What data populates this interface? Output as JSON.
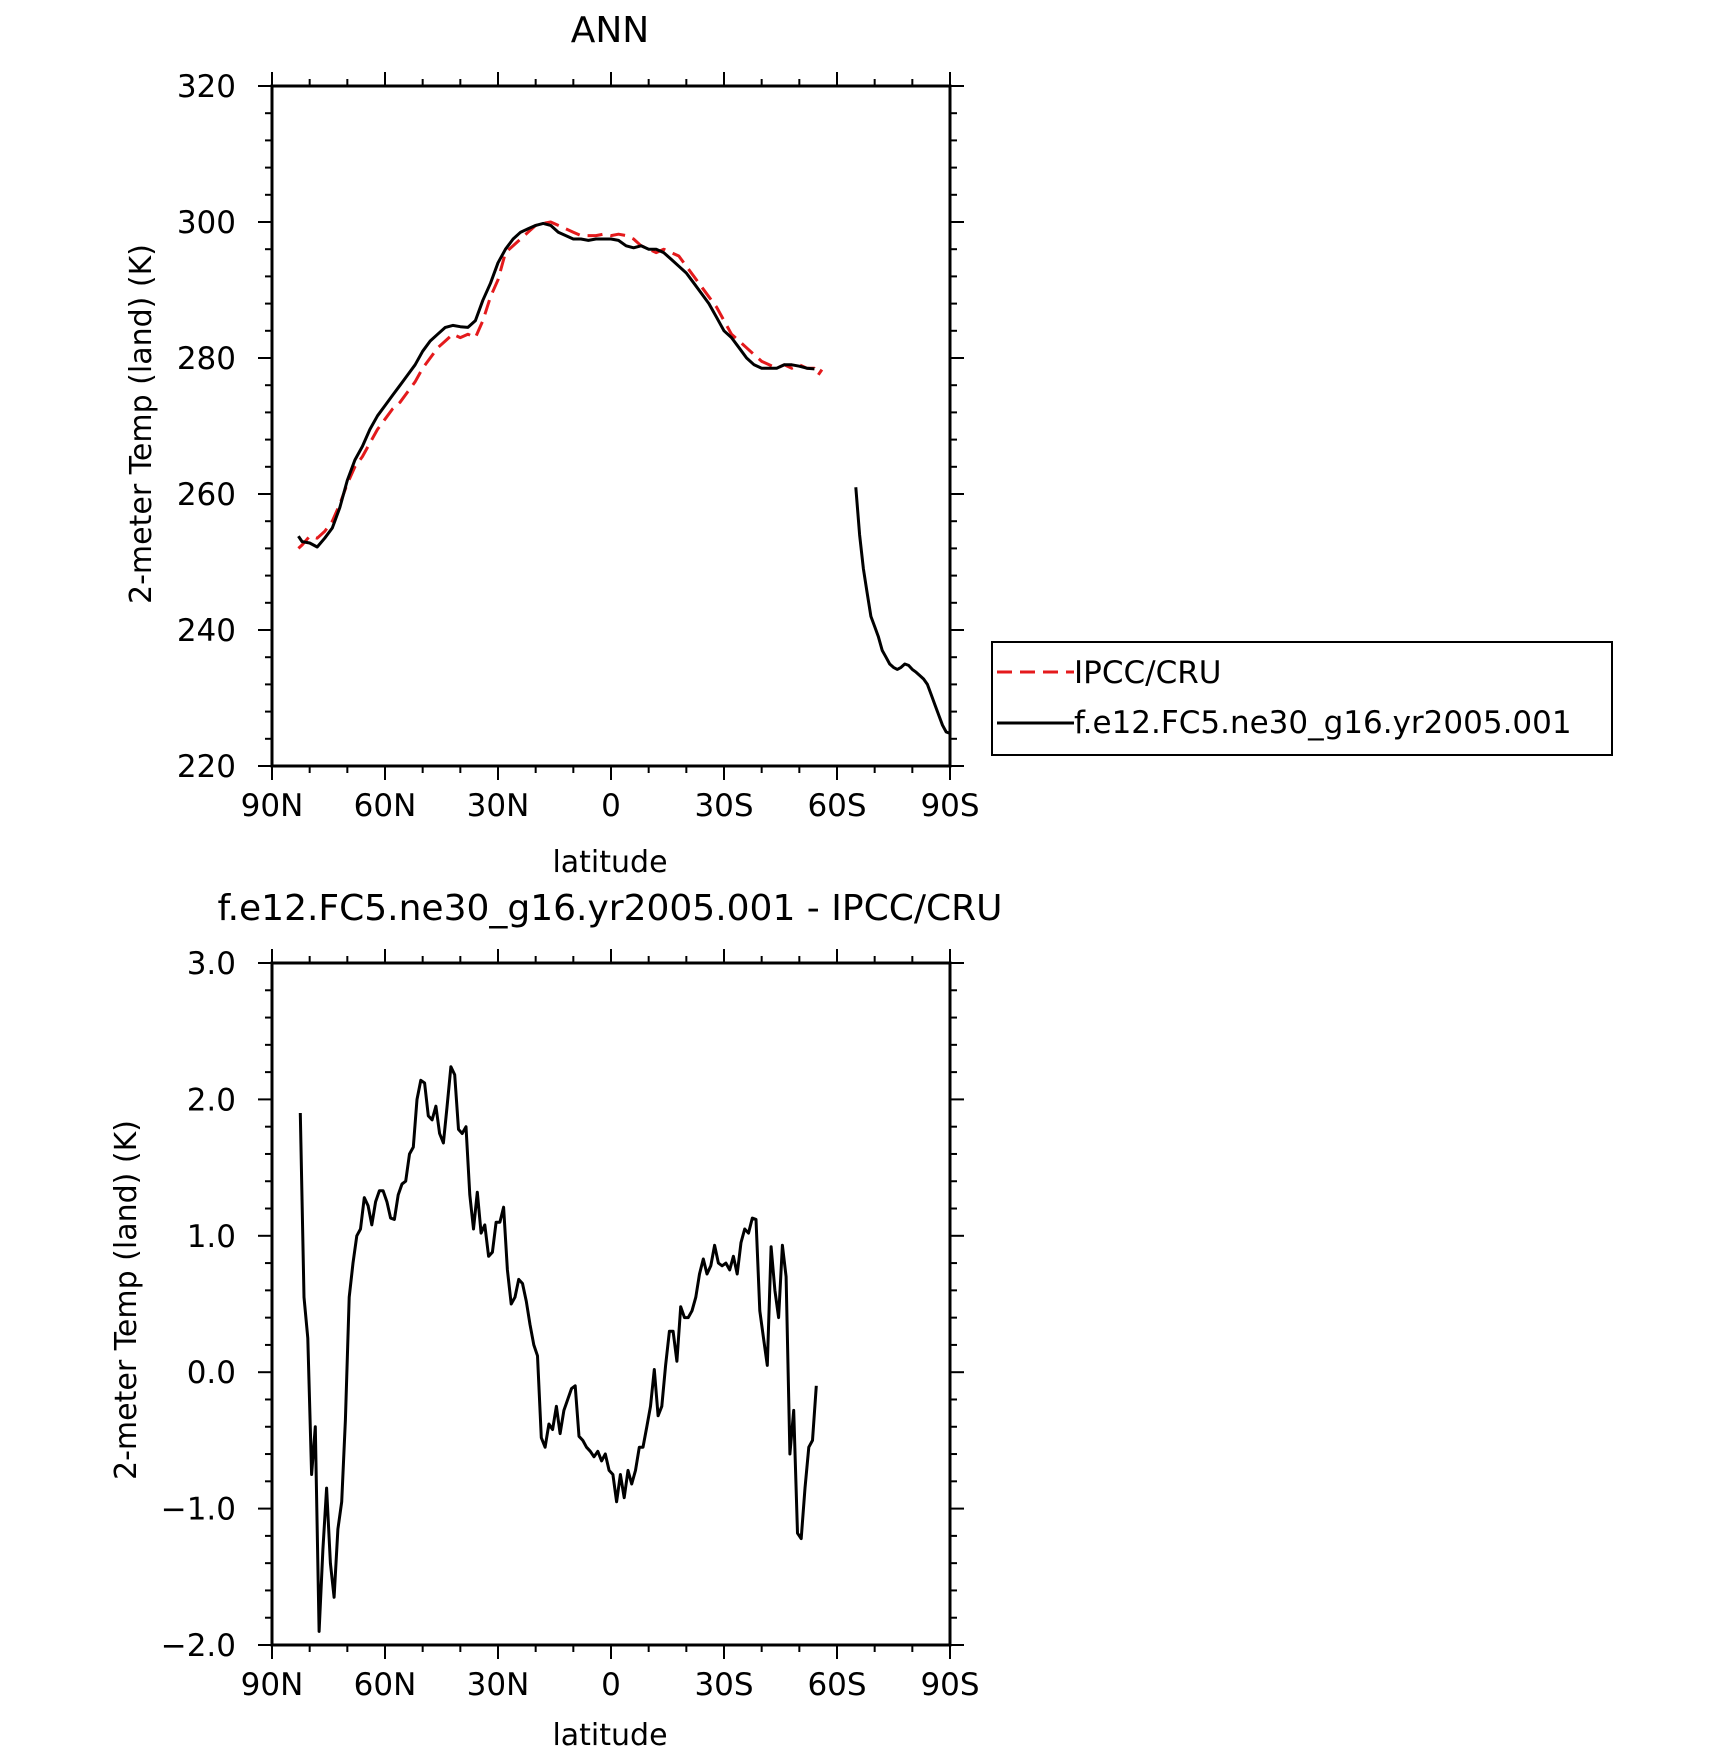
{
  "colors": {
    "obs": "#e41a1c",
    "model": "#000000"
  },
  "chart_data": [
    {
      "type": "line",
      "title": "ANN",
      "xlabel": "latitude",
      "ylabel": "2-meter Temp (land) (K)",
      "xlim": [
        90,
        -90
      ],
      "ylim": [
        220,
        320
      ],
      "grid": false,
      "legend": "right",
      "x_ticks": [
        {
          "value": 90,
          "label": "90N"
        },
        {
          "value": 60,
          "label": "60N"
        },
        {
          "value": 30,
          "label": "30N"
        },
        {
          "value": 0,
          "label": "0"
        },
        {
          "value": -30,
          "label": "30S"
        },
        {
          "value": -60,
          "label": "60S"
        },
        {
          "value": -90,
          "label": "90S"
        }
      ],
      "y_ticks": [
        {
          "value": 320,
          "label": "320"
        },
        {
          "value": 300,
          "label": "300"
        },
        {
          "value": 280,
          "label": "280"
        },
        {
          "value": 260,
          "label": "260"
        },
        {
          "value": 240,
          "label": "240"
        },
        {
          "value": 220,
          "label": "220"
        }
      ],
      "series": [
        {
          "name": "IPCC/CRU",
          "style": "dashed",
          "color": "#e41a1c",
          "x": [
            83,
            82,
            80,
            78,
            76,
            74,
            72,
            70,
            68,
            66,
            64,
            62,
            60,
            58,
            56,
            54,
            52,
            50,
            48,
            46,
            44,
            42,
            40,
            38,
            36,
            34,
            32,
            30,
            28,
            26,
            24,
            22,
            20,
            18,
            16,
            14,
            12,
            10,
            8,
            6,
            4,
            2,
            0,
            -2,
            -4,
            -6,
            -8,
            -10,
            -12,
            -14,
            -16,
            -18,
            -20,
            -22,
            -24,
            -26,
            -28,
            -30,
            -32,
            -34,
            -36,
            -38,
            -40,
            -42,
            -44,
            -46,
            -48,
            -50,
            -52,
            -54,
            -55,
            -56
          ],
          "y": [
            252.0,
            252.5,
            253.8,
            253.5,
            254.5,
            256.0,
            258.5,
            261.5,
            264.0,
            265.5,
            267.5,
            269.5,
            271.0,
            272.5,
            273.5,
            275.0,
            276.5,
            278.5,
            280.0,
            281.5,
            282.5,
            283.5,
            283.0,
            283.5,
            283.0,
            285.5,
            289.0,
            291.5,
            295.5,
            296.5,
            297.5,
            298.5,
            299.5,
            299.8,
            300.0,
            299.5,
            299.0,
            298.5,
            298.0,
            298.0,
            298.0,
            298.2,
            298.0,
            298.2,
            298.0,
            297.5,
            296.5,
            296.0,
            295.5,
            296.0,
            295.5,
            295.0,
            293.5,
            292.0,
            290.5,
            289.0,
            287.5,
            285.5,
            283.5,
            282.5,
            281.5,
            280.5,
            279.5,
            279.0,
            278.5,
            279.0,
            278.5,
            279.0,
            278.5,
            278.5,
            277.5,
            278.3
          ]
        },
        {
          "name": "f.e12.FC5.ne30_g16.yr2005.001",
          "style": "solid",
          "color": "#000000",
          "x": [
            83,
            82,
            80,
            78,
            76,
            74,
            72,
            70,
            68,
            66,
            64,
            62,
            60,
            58,
            56,
            54,
            52,
            50,
            48,
            46,
            44,
            42,
            40,
            38,
            36,
            34,
            32,
            30,
            28,
            26,
            24,
            22,
            20,
            18,
            16,
            14,
            12,
            10,
            8,
            6,
            4,
            2,
            0,
            -2,
            -4,
            -6,
            -8,
            -10,
            -12,
            -14,
            -16,
            -18,
            -20,
            -22,
            -24,
            -26,
            -28,
            -30,
            -32,
            -34,
            -36,
            -38,
            -40,
            -42,
            -44,
            -46,
            -48,
            -50,
            -52,
            -54
          ],
          "y": [
            253.8,
            253.0,
            252.8,
            252.2,
            253.5,
            255.0,
            258.0,
            262.0,
            265.0,
            267.0,
            269.5,
            271.5,
            273.0,
            274.5,
            276.0,
            277.5,
            279.0,
            281.0,
            282.5,
            283.5,
            284.5,
            284.8,
            284.6,
            284.5,
            285.5,
            288.5,
            291.0,
            294.0,
            296.0,
            297.5,
            298.5,
            299.0,
            299.5,
            299.8,
            299.5,
            298.5,
            298.0,
            297.5,
            297.5,
            297.3,
            297.5,
            297.5,
            297.5,
            297.3,
            296.5,
            296.2,
            296.5,
            296.0,
            296.0,
            295.5,
            294.5,
            293.5,
            292.5,
            291.0,
            289.5,
            288.0,
            286.0,
            284.0,
            283.0,
            281.5,
            280.0,
            279.0,
            278.5,
            278.5,
            278.5,
            279.0,
            279.0,
            278.8,
            278.5,
            278.4
          ]
        },
        {
          "name": "f.e12.FC5.ne30_g16.yr2005.001",
          "style": "solid",
          "color": "#000000",
          "x": [
            -65,
            -66,
            -67,
            -68,
            -69,
            -70,
            -71,
            -72,
            -73,
            -74,
            -75,
            -76,
            -77,
            -78,
            -79,
            -80,
            -81,
            -82,
            -83,
            -84,
            -85,
            -86,
            -87,
            -88,
            -89,
            -90
          ],
          "y": [
            261,
            254,
            249,
            245.5,
            242,
            240.5,
            239,
            237,
            236,
            235,
            234.5,
            234.2,
            234.5,
            235,
            234.8,
            234.2,
            233.8,
            233.3,
            232.8,
            232,
            230.5,
            229,
            227.5,
            226,
            225,
            224.8
          ]
        }
      ]
    },
    {
      "type": "line",
      "title": "f.e12.FC5.ne30_g16.yr2005.001 - IPCC/CRU",
      "xlabel": "latitude",
      "ylabel": "2-meter Temp (land) (K)",
      "xlim": [
        90,
        -90
      ],
      "ylim": [
        -2.0,
        3.0
      ],
      "grid": false,
      "x_ticks": [
        {
          "value": 90,
          "label": "90N"
        },
        {
          "value": 60,
          "label": "60N"
        },
        {
          "value": 30,
          "label": "30N"
        },
        {
          "value": 0,
          "label": "0"
        },
        {
          "value": -30,
          "label": "30S"
        },
        {
          "value": -60,
          "label": "60S"
        },
        {
          "value": -90,
          "label": "90S"
        }
      ],
      "y_ticks": [
        {
          "value": 3.0,
          "label": "3.0"
        },
        {
          "value": 2.0,
          "label": "2.0"
        },
        {
          "value": 1.0,
          "label": "1.0"
        },
        {
          "value": 0.0,
          "label": "0.0"
        },
        {
          "value": -1.0,
          "label": "−1.0"
        },
        {
          "value": -2.0,
          "label": "−2.0"
        }
      ],
      "series": [
        {
          "name": "",
          "style": "solid",
          "color": "#000000",
          "x": [
            82.5,
            81.5,
            80.5,
            79.5,
            78.5,
            77.5,
            76.5,
            75.5,
            74.5,
            73.5,
            72.5,
            71.5,
            70.5,
            69.5,
            68.5,
            67.5,
            66.5,
            65.5,
            64.5,
            63.5,
            62.5,
            61.5,
            60.5,
            59.5,
            58.5,
            57.5,
            56.5,
            55.5,
            54.5,
            53.5,
            52.5,
            51.5,
            50.5,
            49.5,
            48.5,
            47.5,
            46.5,
            45.5,
            44.5,
            43.5,
            42.5,
            41.5,
            40.5,
            39.5,
            38.5,
            37.5,
            36.5,
            35.5,
            34.5,
            33.5,
            32.5,
            31.5,
            30.5,
            29.5,
            28.5,
            27.5,
            26.5,
            25.5,
            24.5,
            23.5,
            22.5,
            21.5,
            20.5,
            19.5,
            18.5,
            17.5,
            16.5,
            15.5,
            14.5,
            13.5,
            12.5,
            11.5,
            10.5,
            9.5,
            8.5,
            7.5,
            6.5,
            5.5,
            4.5,
            3.5,
            2.5,
            1.5,
            0.5,
            -0.5,
            -1.5,
            -2.5,
            -3.5,
            -4.5,
            -5.5,
            -6.5,
            -7.5,
            -8.5,
            -9.5,
            -10.5,
            -11.5,
            -12.5,
            -13.5,
            -14.5,
            -15.5,
            -16.5,
            -17.5,
            -18.5,
            -19.5,
            -20.5,
            -21.5,
            -22.5,
            -23.5,
            -24.5,
            -25.5,
            -26.5,
            -27.5,
            -28.5,
            -29.5,
            -30.5,
            -31.5,
            -32.5,
            -33.5,
            -34.5,
            -35.5,
            -36.5,
            -37.5,
            -38.5,
            -39.5,
            -40.5,
            -41.5,
            -42.5,
            -43.5,
            -44.5,
            -45.5,
            -46.5,
            -47.5,
            -48.5,
            -49.5,
            -50.5,
            -51.5,
            -52.5,
            -53.5,
            -54.5
          ],
          "y": [
            1.9,
            0.55,
            0.25,
            -0.75,
            -0.4,
            -1.9,
            -1.3,
            -0.85,
            -1.4,
            -1.65,
            -1.15,
            -0.95,
            -0.35,
            0.55,
            0.8,
            1.0,
            1.05,
            1.28,
            1.22,
            1.08,
            1.25,
            1.33,
            1.33,
            1.25,
            1.13,
            1.12,
            1.3,
            1.38,
            1.4,
            1.6,
            1.65,
            2.0,
            2.14,
            2.12,
            1.88,
            1.85,
            1.95,
            1.75,
            1.68,
            1.95,
            2.24,
            2.18,
            1.78,
            1.75,
            1.8,
            1.3,
            1.05,
            1.32,
            1.02,
            1.08,
            0.85,
            0.88,
            1.1,
            1.1,
            1.21,
            0.75,
            0.5,
            0.55,
            0.68,
            0.65,
            0.52,
            0.35,
            0.2,
            0.12,
            -0.48,
            -0.55,
            -0.38,
            -0.42,
            -0.25,
            -0.45,
            -0.28,
            -0.2,
            -0.12,
            -0.1,
            -0.47,
            -0.5,
            -0.55,
            -0.58,
            -0.62,
            -0.58,
            -0.65,
            -0.6,
            -0.72,
            -0.75,
            -0.95,
            -0.75,
            -0.92,
            -0.72,
            -0.82,
            -0.72,
            -0.55,
            -0.55,
            -0.4,
            -0.25,
            0.02,
            -0.32,
            -0.25,
            0.05,
            0.3,
            0.3,
            0.08,
            0.48,
            0.4,
            0.4,
            0.45,
            0.55,
            0.72,
            0.83,
            0.72,
            0.78,
            0.93,
            0.8,
            0.78,
            0.8,
            0.75,
            0.85,
            0.72,
            0.95,
            1.05,
            1.02,
            1.13,
            1.12,
            0.45,
            0.25,
            0.05,
            0.92,
            0.6,
            0.4,
            0.93,
            0.7,
            -0.6,
            -0.28,
            -1.18,
            -1.22,
            -0.85,
            -0.55,
            -0.5,
            -0.1
          ]
        }
      ]
    }
  ]
}
